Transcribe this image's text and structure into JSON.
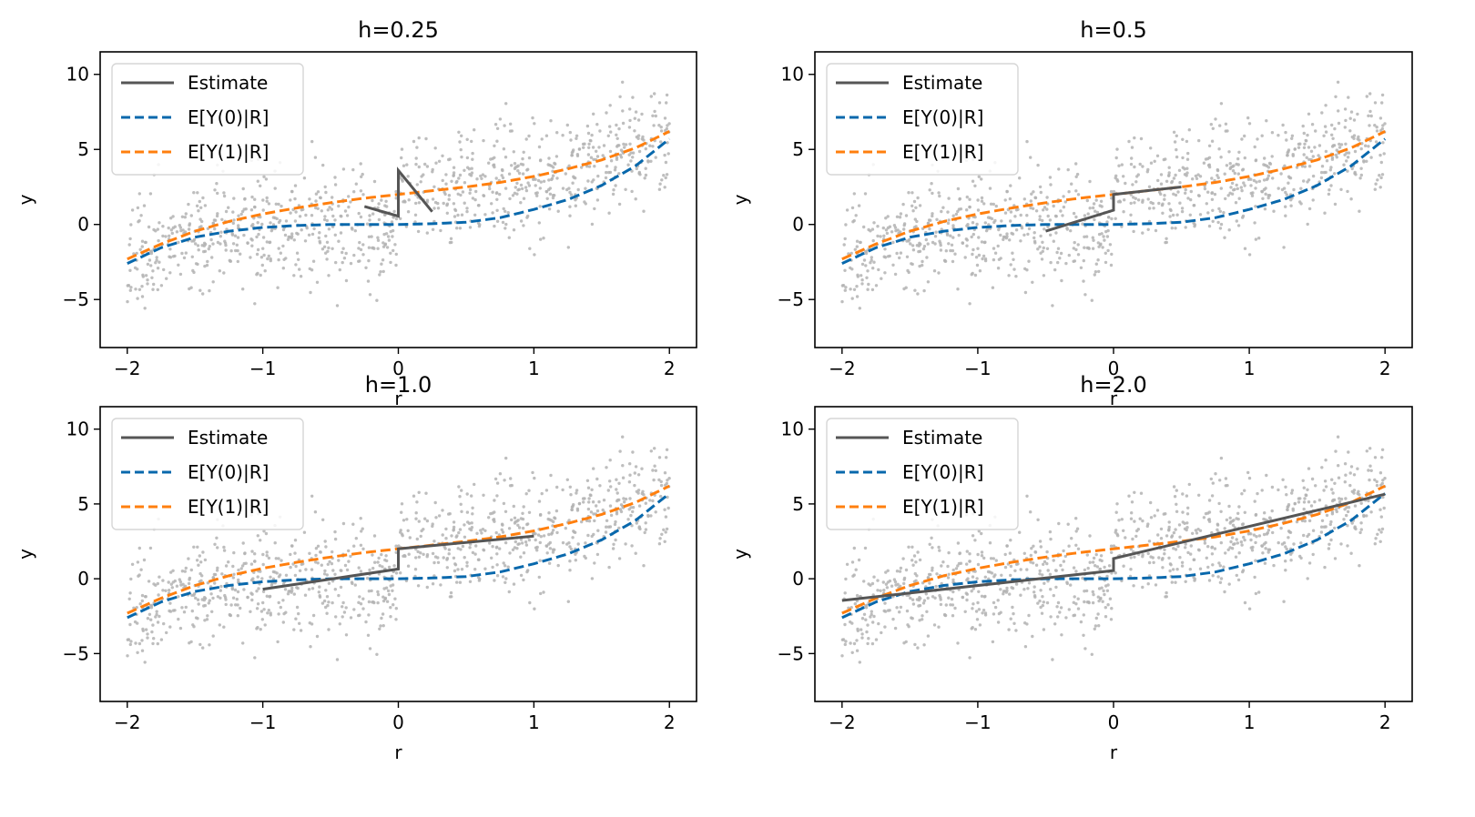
{
  "chart_data": [
    {
      "type": "scatter",
      "title": "h=0.25",
      "xlabel": "r",
      "ylabel": "y",
      "xlim": [
        -2.2,
        2.2
      ],
      "ylim": [
        -8.2,
        11.5
      ],
      "xticks": [
        -2,
        -1,
        0,
        1,
        2
      ],
      "xtick_labels": [
        "−2",
        "−1",
        "0",
        "1",
        "2"
      ],
      "yticks": [
        -5,
        0,
        5,
        10
      ],
      "ytick_labels": [
        "−5",
        "0",
        "5",
        "10"
      ],
      "grid": false,
      "legend": {
        "placement": "top-left",
        "entries": [
          "Estimate",
          "E[Y(0)|R]",
          "E[Y(1)|R]"
        ]
      },
      "estimate": {
        "x": [
          -0.25,
          0,
          0,
          0.25
        ],
        "y": [
          1.2,
          0.55,
          3.6,
          0.85
        ]
      }
    },
    {
      "type": "scatter",
      "title": "h=0.5",
      "xlabel": "r",
      "ylabel": "y",
      "xlim": [
        -2.2,
        2.2
      ],
      "ylim": [
        -8.2,
        11.5
      ],
      "xticks": [
        -2,
        -1,
        0,
        1,
        2
      ],
      "xtick_labels": [
        "−2",
        "−1",
        "0",
        "1",
        "2"
      ],
      "yticks": [
        -5,
        0,
        5,
        10
      ],
      "ytick_labels": [
        "−5",
        "0",
        "5",
        "10"
      ],
      "grid": false,
      "legend": {
        "placement": "top-left",
        "entries": [
          "Estimate",
          "E[Y(0)|R]",
          "E[Y(1)|R]"
        ]
      },
      "estimate": {
        "x": [
          -0.5,
          0,
          0,
          0.5
        ],
        "y": [
          -0.45,
          0.95,
          2.0,
          2.5
        ]
      }
    },
    {
      "type": "scatter",
      "title": "h=1.0",
      "xlabel": "r",
      "ylabel": "y",
      "xlim": [
        -2.2,
        2.2
      ],
      "ylim": [
        -8.2,
        11.5
      ],
      "xticks": [
        -2,
        -1,
        0,
        1,
        2
      ],
      "xtick_labels": [
        "−2",
        "−1",
        "0",
        "1",
        "2"
      ],
      "yticks": [
        -5,
        0,
        5,
        10
      ],
      "ytick_labels": [
        "−5",
        "0",
        "5",
        "10"
      ],
      "grid": false,
      "legend": {
        "placement": "top-left",
        "entries": [
          "Estimate",
          "E[Y(0)|R]",
          "E[Y(1)|R]"
        ]
      },
      "estimate": {
        "x": [
          -1,
          0,
          0,
          1
        ],
        "y": [
          -0.7,
          0.65,
          2.0,
          2.85
        ]
      }
    },
    {
      "type": "scatter",
      "title": "h=2.0",
      "xlabel": "r",
      "ylabel": "y",
      "xlim": [
        -2.2,
        2.2
      ],
      "ylim": [
        -8.2,
        11.5
      ],
      "xticks": [
        -2,
        -1,
        0,
        1,
        2
      ],
      "xtick_labels": [
        "−2",
        "−1",
        "0",
        "1",
        "2"
      ],
      "yticks": [
        -5,
        0,
        5,
        10
      ],
      "ytick_labels": [
        "−5",
        "0",
        "5",
        "10"
      ],
      "grid": false,
      "legend": {
        "placement": "top-left",
        "entries": [
          "Estimate",
          "E[Y(0)|R]",
          "E[Y(1)|R]"
        ]
      },
      "estimate": {
        "x": [
          -2,
          0,
          0,
          2
        ],
        "y": [
          -1.45,
          0.55,
          1.35,
          5.65
        ]
      }
    }
  ],
  "shared_curves": {
    "E[Y(0)|R]": {
      "x": [
        -2,
        -1.75,
        -1.5,
        -1.25,
        -1,
        -0.75,
        -0.5,
        -0.25,
        0,
        0.25,
        0.5,
        0.75,
        1,
        1.25,
        1.5,
        1.75,
        2
      ],
      "y": [
        -2.6,
        -1.55,
        -0.85,
        -0.45,
        -0.2,
        -0.07,
        0.0,
        0.0,
        0.0,
        0.05,
        0.15,
        0.45,
        1.0,
        1.65,
        2.6,
        3.9,
        5.7
      ]
    },
    "E[Y(1)|R]": {
      "x": [
        -2,
        -1.75,
        -1.5,
        -1.25,
        -1,
        -0.75,
        -0.5,
        -0.25,
        0,
        0.25,
        0.5,
        0.75,
        1,
        1.25,
        1.5,
        1.75,
        2
      ],
      "y": [
        -2.3,
        -1.3,
        -0.45,
        0.2,
        0.7,
        1.1,
        1.45,
        1.75,
        2.0,
        2.25,
        2.5,
        2.8,
        3.2,
        3.7,
        4.3,
        5.1,
        6.2
      ]
    }
  },
  "scatter_sample": {
    "n": 1000,
    "seed": 7,
    "noise_sd": 1.8,
    "x_range": [
      -2,
      2
    ]
  },
  "series_colors": {
    "estimate": "#555555",
    "E[Y(0)|R]": "#0868ac",
    "E[Y(1)|R]": "#ff7f0e",
    "points": "#b3b3b3"
  }
}
